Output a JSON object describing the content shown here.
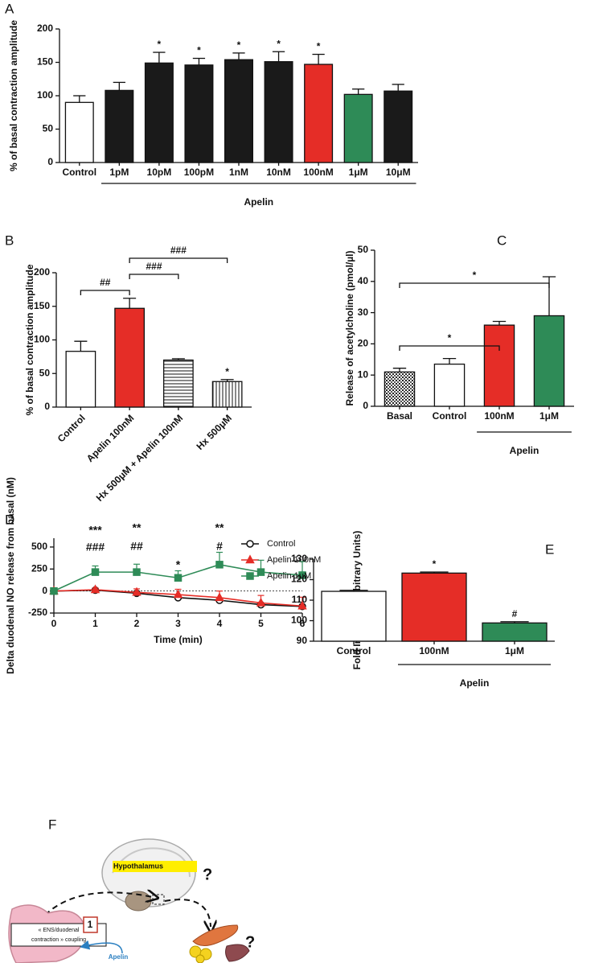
{
  "chart_data": [
    {
      "type": "bar",
      "label": "A",
      "ylabel": "% of basal contraction amplitude",
      "categories": [
        "Control",
        "1pM",
        "10pM",
        "100pM",
        "1nM",
        "10nM",
        "100nM",
        "1μM",
        "10μM"
      ],
      "values": [
        90,
        108,
        149,
        146,
        154,
        151,
        147,
        102,
        107
      ],
      "errors": [
        10,
        12,
        16,
        10,
        10,
        15,
        15,
        8,
        10
      ],
      "fills": [
        "#ffffff",
        "#1a1a1a",
        "#1a1a1a",
        "#1a1a1a",
        "#1a1a1a",
        "#1a1a1a",
        "#e52d27",
        "#2e8b57",
        "#1a1a1a"
      ],
      "ylim": [
        0,
        200
      ],
      "yticks": [
        0,
        50,
        100,
        150,
        200
      ],
      "group_label": "Apelin",
      "annotations": [
        "*",
        "*",
        "*",
        "*",
        "*"
      ]
    },
    {
      "type": "bar",
      "label": "B",
      "ylabel": "% of basal contraction amplitude",
      "categories": [
        "Control",
        "Apelin 100nM",
        "Hx 500μM + Apelin 100nM",
        "Hx 500μM"
      ],
      "values": [
        83,
        147,
        70,
        38
      ],
      "errors": [
        15,
        15,
        2,
        3
      ],
      "fills": [
        "#ffffff",
        "#e52d27",
        "hstripes",
        "vstripes"
      ],
      "ylim": [
        0,
        200
      ],
      "yticks": [
        0,
        50,
        100,
        150,
        200
      ],
      "annotations": [
        "##",
        "###",
        "###",
        "*"
      ]
    },
    {
      "type": "bar",
      "label": "C",
      "ylabel": "Release of acetylcholine (pmol/µl)",
      "categories": [
        "Basal",
        "Control",
        "100nM",
        "1μM"
      ],
      "values": [
        11,
        13.5,
        26,
        29
      ],
      "errors": [
        1.2,
        1.8,
        1.2,
        12.5
      ],
      "fills": [
        "dots",
        "#ffffff",
        "#e52d27",
        "#2e8b57"
      ],
      "ylim": [
        0,
        50
      ],
      "yticks": [
        0,
        10,
        20,
        30,
        40,
        50
      ],
      "group_label": "Apelin",
      "annotations": [
        "*",
        "*"
      ]
    },
    {
      "type": "line",
      "label": "D",
      "ylabel": "Delta duodenal NO release from basal (nM)",
      "xlabel": "Time (min)",
      "x": [
        0,
        1,
        2,
        3,
        4,
        5,
        6
      ],
      "series": [
        {
          "name": "Control",
          "color": "#111111",
          "marker": "circle",
          "values": [
            0,
            10,
            -25,
            -75,
            -105,
            -155,
            -175
          ],
          "errors": [
            0,
            15,
            10,
            10,
            10,
            10,
            10
          ]
        },
        {
          "name": "Apelin 100nM",
          "color": "#e52d27",
          "marker": "triangle",
          "values": [
            0,
            15,
            -15,
            -40,
            -75,
            -135,
            -170
          ],
          "errors": [
            0,
            20,
            40,
            60,
            75,
            85,
            100
          ]
        },
        {
          "name": "Apelin 1μM",
          "color": "#2e8b57",
          "marker": "square",
          "values": [
            0,
            215,
            215,
            150,
            300,
            215,
            180
          ],
          "errors": [
            0,
            70,
            90,
            80,
            140,
            135,
            155
          ]
        }
      ],
      "xlim": [
        0,
        6
      ],
      "xticks": [
        0,
        1,
        2,
        3,
        4,
        5,
        6
      ],
      "ylim": [
        -250,
        600
      ],
      "yticks": [
        -250,
        0,
        250,
        500
      ],
      "zero_line": true,
      "annotations": [
        "***",
        "###",
        "**",
        "##",
        "*",
        "**",
        "#"
      ]
    },
    {
      "type": "bar",
      "label": "E",
      "ylabel": "Fold Increase (Arbitrary Units)",
      "categories": [
        "Control",
        "100nM",
        "1μM"
      ],
      "values": [
        114.3,
        123.2,
        98.9
      ],
      "errors": [
        0.5,
        0.5,
        0.6
      ],
      "fills": [
        "#ffffff",
        "#e52d27",
        "#2e8b57"
      ],
      "ylim": [
        90,
        130
      ],
      "yticks": [
        90,
        100,
        110,
        120,
        130
      ],
      "group_label": "Apelin",
      "annotations": [
        "*",
        "#"
      ]
    }
  ],
  "diagram": {
    "label": "F",
    "region": "Hypothalamus",
    "questions": [
      "?",
      "?"
    ],
    "step": "1",
    "box": [
      "« ENS/duodenal",
      "contraction » coupling"
    ],
    "arrow_label": "Apelin"
  }
}
